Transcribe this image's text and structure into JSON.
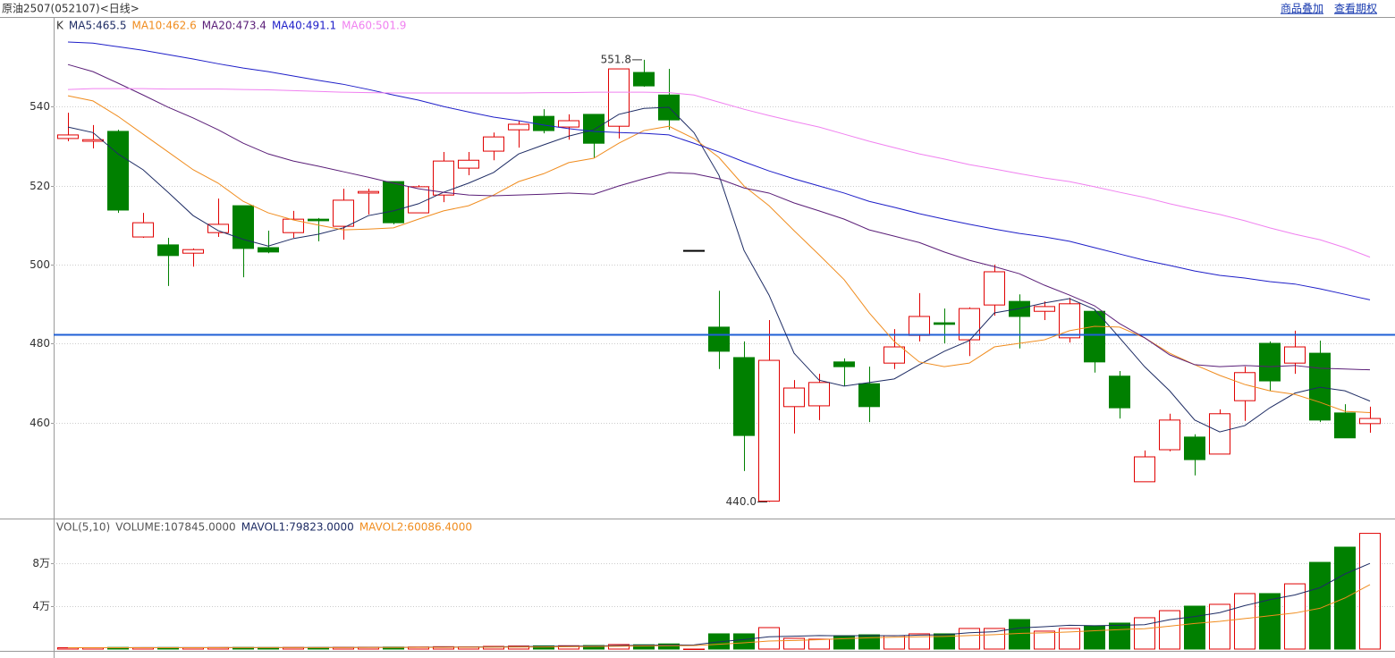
{
  "header": {
    "title": "原油2507(052107)<日线>",
    "links": [
      "商品叠加",
      "查看期权"
    ]
  },
  "chart_data": [
    {
      "type": "candlestick",
      "indicator": "K",
      "open": [
        531.9,
        531.2,
        533.7,
        507.0,
        505.0,
        502.9,
        508.1,
        514.9,
        504.3,
        508.1,
        511.5,
        509.7,
        518.1,
        521.0,
        513.1,
        517.6,
        524.4,
        528.7,
        534.1,
        537.5,
        534.8,
        538.0,
        535.0,
        548.6,
        542.9,
        503.6,
        484.2,
        476.5,
        440.2,
        464.1,
        464.3,
        475.4,
        469.9,
        475.1,
        482.1,
        485.3,
        481.0,
        489.8,
        490.7,
        488.2,
        481.5,
        488.2,
        471.8,
        445.1,
        453.2,
        456.4,
        452.1,
        465.6,
        480.1,
        475.1,
        477.6,
        462.5,
        459.8
      ],
      "high": [
        538.4,
        535.3,
        534.1,
        513.1,
        506.8,
        504.1,
        516.7,
        514.9,
        508.6,
        513.6,
        511.8,
        519.2,
        519.2,
        521.0,
        520.1,
        528.5,
        528.5,
        533.4,
        536.4,
        539.3,
        538.0,
        538.0,
        549.5,
        551.8,
        549.5,
        503.6,
        493.4,
        480.6,
        486.0,
        470.8,
        472.4,
        476.3,
        474.2,
        483.7,
        492.8,
        488.9,
        489.2,
        500.0,
        492.5,
        490.7,
        491.6,
        488.7,
        473.1,
        453.0,
        462.3,
        457.1,
        463.4,
        474.2,
        480.6,
        483.3,
        480.8,
        464.7,
        464.1
      ],
      "low": [
        531.2,
        529.4,
        513.1,
        506.8,
        494.6,
        499.5,
        507.0,
        496.8,
        502.9,
        506.8,
        505.9,
        506.3,
        512.7,
        510.2,
        513.1,
        515.8,
        522.6,
        526.4,
        529.6,
        533.2,
        531.6,
        526.9,
        531.9,
        545.0,
        534.1,
        503.6,
        473.6,
        447.8,
        440.0,
        457.3,
        460.7,
        469.3,
        460.2,
        473.6,
        480.6,
        480.1,
        476.9,
        487.1,
        478.8,
        486.0,
        480.3,
        472.7,
        461.1,
        445.1,
        452.8,
        446.7,
        452.1,
        460.5,
        468.1,
        472.4,
        460.2,
        456.2,
        457.5
      ],
      "close": [
        532.8,
        531.6,
        513.8,
        510.6,
        502.3,
        503.8,
        510.2,
        504.1,
        503.2,
        511.5,
        511.1,
        516.3,
        518.5,
        510.6,
        519.7,
        526.2,
        526.4,
        532.3,
        535.5,
        533.9,
        536.4,
        530.7,
        549.5,
        545.2,
        536.6,
        503.6,
        478.1,
        456.8,
        475.8,
        468.8,
        470.2,
        474.2,
        464.1,
        479.2,
        486.9,
        484.9,
        488.9,
        498.2,
        486.9,
        489.4,
        490.1,
        475.4,
        463.8,
        451.4,
        460.7,
        450.7,
        462.3,
        472.7,
        470.6,
        479.2,
        460.7,
        456.2,
        461.1
      ],
      "up_color": "#e00000",
      "down_color": "#008000",
      "flat_color": "#000000",
      "ylim": [
        435.8,
        562.4
      ],
      "yticks": [
        460,
        480,
        500,
        520,
        540
      ],
      "grid": true,
      "lines": [
        {
          "name": "MA5:465.5",
          "color": "#1e2c64",
          "values": [
            534.8,
            533.4,
            528.0,
            524.0,
            518.3,
            512.4,
            508.6,
            506.4,
            504.7,
            506.6,
            507.7,
            509.3,
            512.4,
            513.6,
            515.4,
            518.3,
            520.6,
            523.3,
            528.0,
            530.3,
            532.5,
            534.1,
            538.0,
            539.5,
            539.8,
            533.4,
            522.6,
            503.6,
            492.3,
            477.6,
            470.8,
            469.3,
            470.2,
            471.1,
            474.7,
            478.1,
            480.8,
            487.8,
            488.9,
            490.3,
            491.4,
            488.7,
            481.5,
            474.2,
            468.1,
            460.7,
            457.7,
            459.3,
            463.8,
            467.5,
            469.0,
            468.1,
            465.5
          ]
        },
        {
          "name": "MA10:462.6",
          "color": "#f08c1e",
          "values": [
            542.7,
            541.4,
            537.5,
            533.0,
            528.5,
            524.0,
            520.6,
            516.0,
            513.1,
            511.3,
            510.0,
            508.8,
            509.0,
            509.3,
            511.5,
            513.6,
            514.9,
            517.6,
            521.0,
            523.0,
            525.8,
            526.9,
            530.7,
            533.9,
            535.0,
            531.9,
            527.1,
            519.9,
            514.9,
            508.6,
            502.5,
            496.2,
            487.8,
            480.6,
            475.4,
            474.2,
            475.1,
            479.2,
            480.1,
            481.0,
            483.3,
            484.4,
            484.2,
            481.5,
            477.6,
            474.7,
            472.0,
            469.7,
            468.1,
            467.2,
            465.2,
            462.9,
            462.6
          ]
        },
        {
          "name": "MA20:473.4",
          "color": "#5a1e78",
          "values": [
            550.6,
            548.8,
            545.9,
            542.9,
            539.8,
            537.1,
            534.1,
            530.7,
            528.0,
            526.2,
            524.9,
            523.5,
            522.1,
            520.6,
            519.2,
            518.3,
            517.6,
            517.4,
            517.6,
            517.8,
            518.1,
            517.8,
            519.9,
            521.7,
            523.3,
            523.0,
            521.7,
            519.4,
            518.1,
            515.6,
            513.6,
            511.5,
            508.8,
            507.2,
            505.6,
            503.2,
            501.1,
            499.5,
            497.7,
            494.8,
            492.3,
            489.6,
            485.1,
            481.5,
            477.2,
            474.7,
            474.2,
            474.5,
            474.2,
            474.5,
            473.8,
            473.6,
            473.4
          ]
        },
        {
          "name": "MA40:491.1",
          "color": "#1e1ec8",
          "values": [
            556.3,
            556.0,
            555.1,
            554.2,
            553.1,
            552.0,
            550.8,
            549.7,
            548.8,
            547.7,
            546.6,
            545.6,
            544.3,
            542.9,
            541.6,
            540.0,
            538.6,
            537.3,
            536.4,
            535.3,
            534.4,
            533.7,
            533.4,
            533.2,
            532.8,
            530.7,
            528.5,
            526.0,
            523.7,
            521.7,
            519.9,
            518.1,
            516.0,
            514.5,
            512.9,
            511.5,
            510.2,
            509.0,
            507.9,
            507.0,
            505.9,
            504.3,
            502.7,
            501.1,
            499.8,
            498.4,
            497.3,
            496.6,
            495.7,
            495.1,
            493.9,
            492.5,
            491.1
          ]
        },
        {
          "name": "MA60:501.9",
          "color": "#f080f0",
          "values": [
            544.3,
            544.5,
            544.5,
            544.5,
            544.4,
            544.4,
            544.4,
            544.3,
            544.2,
            544.0,
            543.8,
            543.6,
            543.5,
            543.4,
            543.4,
            543.4,
            543.4,
            543.4,
            543.4,
            543.5,
            543.5,
            543.6,
            543.6,
            543.6,
            543.5,
            542.9,
            541.1,
            539.3,
            537.7,
            536.2,
            534.8,
            533.0,
            531.2,
            529.6,
            528.0,
            526.7,
            525.3,
            524.2,
            523.0,
            521.9,
            521.0,
            519.7,
            518.3,
            517.0,
            515.4,
            514.0,
            512.7,
            511.1,
            509.3,
            507.7,
            506.3,
            504.3,
            501.9
          ]
        }
      ],
      "hline": {
        "value": 482.4,
        "color": "#1f5fd6"
      },
      "annotations": [
        {
          "index": 23,
          "value": 551.8,
          "label": "551.8"
        },
        {
          "index": 28,
          "value": 440.0,
          "label": "440.0"
        }
      ]
    },
    {
      "type": "bar",
      "title": "VOL(5,10)",
      "series": [
        {
          "name": "VOLUME:107845.0000",
          "values": [
            1200,
            1300,
            1500,
            1300,
            1400,
            1300,
            1400,
            1500,
            1400,
            1500,
            1400,
            1600,
            1700,
            1800,
            1900,
            2200,
            2000,
            2500,
            2800,
            3000,
            3100,
            3300,
            4200,
            4000,
            4800,
            0,
            14200,
            14200,
            20000,
            10000,
            9200,
            12500,
            13300,
            12500,
            14200,
            14200,
            19200,
            19200,
            27500,
            16700,
            19200,
            21700,
            24200,
            29200,
            35800,
            40000,
            41700,
            51700,
            51700,
            60800,
            80800,
            95000,
            107845
          ]
        }
      ],
      "lines": [
        {
          "name": "MAVOL1:79823.0000",
          "color": "#1e2c64",
          "values": [
            1300,
            1300,
            1300,
            1350,
            1350,
            1350,
            1350,
            1400,
            1400,
            1400,
            1450,
            1450,
            1550,
            1600,
            1700,
            1850,
            1900,
            2100,
            2300,
            2500,
            2700,
            2900,
            3200,
            3500,
            3700,
            3900,
            6800,
            8900,
            11500,
            12000,
            12600,
            12300,
            12600,
            12400,
            13000,
            13300,
            15200,
            16100,
            19700,
            20800,
            22200,
            21800,
            22200,
            22700,
            27400,
            30300,
            34000,
            40500,
            46000,
            50400,
            57200,
            70000,
            79823
          ]
        },
        {
          "name": "MAVOL2:60086.4000",
          "color": "#f08c1e",
          "values": [
            1300,
            1300,
            1300,
            1300,
            1300,
            1300,
            1300,
            1350,
            1350,
            1350,
            1400,
            1400,
            1450,
            1500,
            1550,
            1600,
            1700,
            1800,
            1900,
            2000,
            2200,
            2400,
            2600,
            2900,
            3100,
            3200,
            4500,
            5800,
            7500,
            8000,
            8800,
            9700,
            10500,
            11000,
            11500,
            11800,
            12600,
            13400,
            14600,
            15100,
            15900,
            17100,
            18100,
            19000,
            21400,
            23900,
            25800,
            28400,
            31000,
            33600,
            38000,
            47600,
            60086.4
          ]
        }
      ],
      "ylim": [
        0,
        120000
      ],
      "yticks": [
        {
          "value": 40000,
          "label": "4万"
        },
        {
          "value": 80000,
          "label": "8万"
        }
      ],
      "grid": true
    }
  ]
}
